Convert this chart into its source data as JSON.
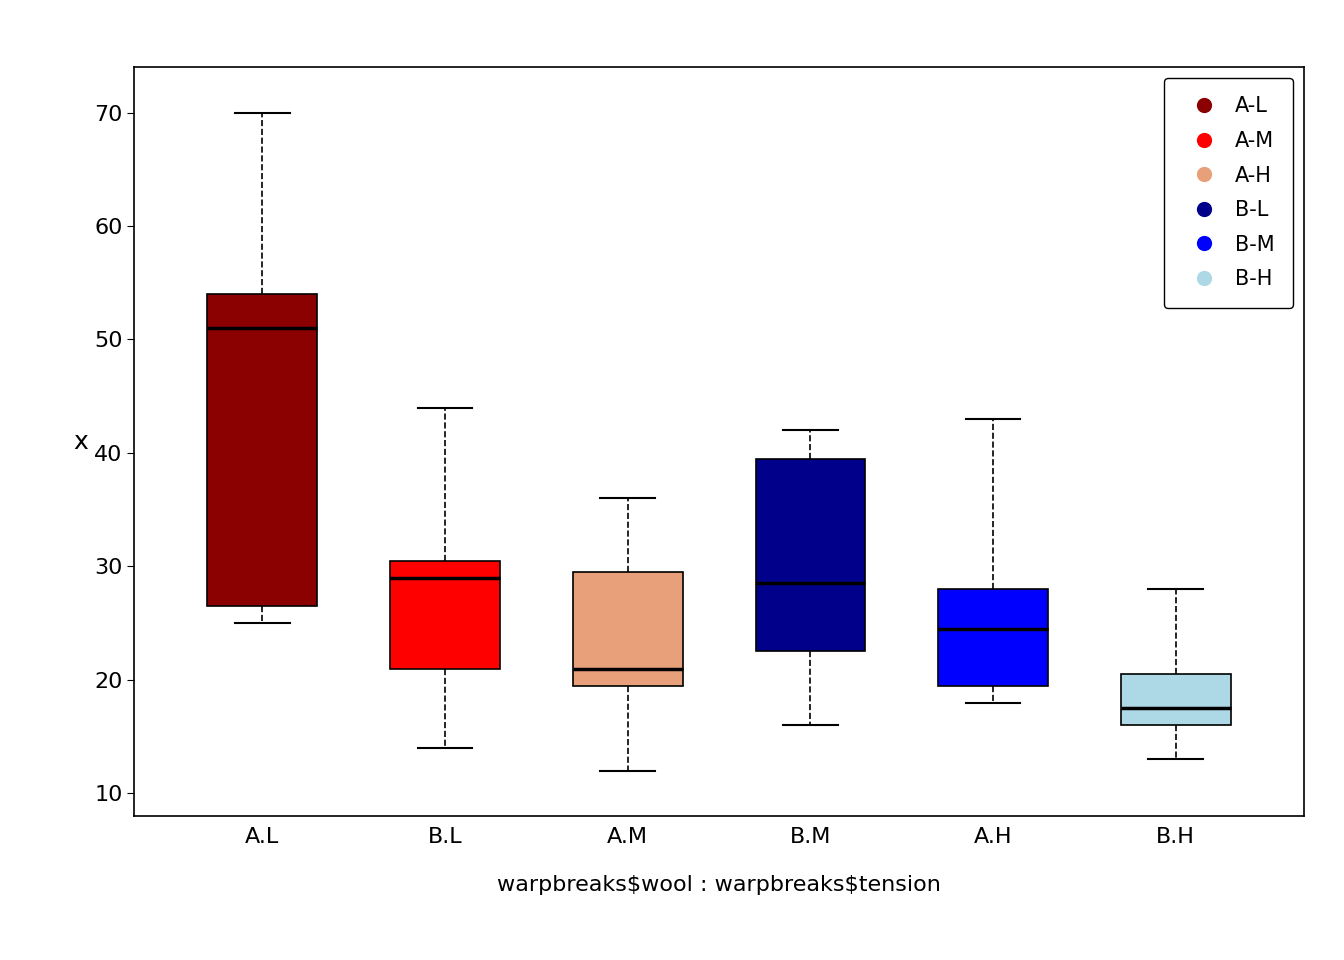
{
  "categories": [
    "A.L",
    "B.L",
    "A.M",
    "B.M",
    "A.H",
    "B.H"
  ],
  "colors": [
    "#8B0000",
    "#FF0000",
    "#E8A07A",
    "#00008B",
    "#0000FF",
    "#ADD8E6"
  ],
  "legend_labels": [
    "A-L",
    "A-M",
    "A-H",
    "B-L",
    "B-M",
    "B-H"
  ],
  "legend_colors": [
    "#8B0000",
    "#FF0000",
    "#E8A07A",
    "#00008B",
    "#0000FF",
    "#ADD8E6"
  ],
  "ylabel": "x",
  "xlabel": "warpbreaks$wool : warpbreaks$tension",
  "ylim": [
    8,
    74
  ],
  "yticks": [
    10,
    20,
    30,
    40,
    50,
    60,
    70
  ],
  "boxes": {
    "A.L": {
      "whislo": 25.0,
      "q1": 26.5,
      "med": 51.0,
      "q3": 54.0,
      "whishi": 70.0
    },
    "B.L": {
      "whislo": 14.0,
      "q1": 21.0,
      "med": 29.0,
      "q3": 30.5,
      "whishi": 44.0
    },
    "A.M": {
      "whislo": 12.0,
      "q1": 19.5,
      "med": 21.0,
      "q3": 29.5,
      "whishi": 36.0
    },
    "B.M": {
      "whislo": 16.0,
      "q1": 22.5,
      "med": 28.5,
      "q3": 39.5,
      "whishi": 42.0
    },
    "A.H": {
      "whislo": 18.0,
      "q1": 19.5,
      "med": 24.5,
      "q3": 28.0,
      "whishi": 43.0
    },
    "B.H": {
      "whislo": 13.0,
      "q1": 16.0,
      "med": 17.5,
      "q3": 20.5,
      "whishi": 28.0
    }
  },
  "background_color": "#FFFFFF"
}
